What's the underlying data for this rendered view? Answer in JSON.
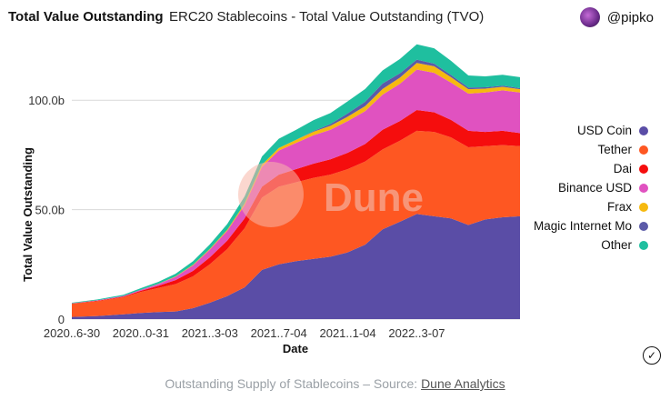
{
  "header": {
    "title": "Total Value Outstanding",
    "subtitle": "ERC20 Stablecoins - Total Value Outstanding (TVO)",
    "user": "@pipko"
  },
  "caption": {
    "prefix": "Outstanding Supply of Stablecoins – Source: ",
    "link_text": "Dune Analytics"
  },
  "watermark": "Dune",
  "colors": {
    "usd_coin": "#5a4da6",
    "tether": "#fe5722",
    "dai": "#f50d0d",
    "binance_usd": "#e052c0",
    "frax": "#f6b90f",
    "magic_internet_money": "#5b5aa8",
    "other": "#1fbf9f"
  },
  "chart_data": {
    "type": "area",
    "stacked": true,
    "xlabel": "Date",
    "ylabel": "Total Value Outstanding",
    "x_tick_labels": [
      "2020..6-30",
      "2020..0-31",
      "2021..3-03",
      "2021..7-04",
      "2021..1-04",
      "2022..3-07"
    ],
    "y_tick_labels": [
      "0",
      "50.0b",
      "100.0b"
    ],
    "ylim": [
      0,
      125
    ],
    "y_unit": "billion USD",
    "x": [
      "2020-06-30",
      "2020-08-15",
      "2020-09-30",
      "2020-10-31",
      "2020-12-01",
      "2021-01-01",
      "2021-02-01",
      "2021-03-03",
      "2021-04-03",
      "2021-05-04",
      "2021-06-04",
      "2021-07-04",
      "2021-08-04",
      "2021-09-04",
      "2021-10-04",
      "2021-11-04",
      "2021-12-05",
      "2022-01-05",
      "2022-02-05",
      "2022-03-07",
      "2022-04-07",
      "2022-05-07",
      "2022-06-07",
      "2022-07-07",
      "2022-08-07",
      "2022-09-07"
    ],
    "series": [
      {
        "name": "USD Coin",
        "color_key": "usd_coin",
        "values": [
          1.0,
          1.4,
          2.2,
          2.8,
          3.2,
          3.5,
          5.0,
          7.5,
          10.5,
          14.5,
          22.5,
          25.0,
          26.5,
          27.5,
          28.5,
          30.5,
          34.0,
          41.0,
          44.5,
          48.0,
          47.0,
          46.0,
          43.0,
          45.5,
          46.5,
          47.0
        ]
      },
      {
        "name": "Tether",
        "color_key": "tether",
        "values": [
          6.0,
          6.8,
          7.8,
          9.6,
          11.0,
          12.5,
          14.5,
          17.5,
          21.5,
          27.0,
          33.0,
          35.5,
          36.0,
          37.0,
          37.5,
          38.0,
          38.0,
          36.5,
          37.0,
          38.0,
          38.5,
          37.0,
          35.5,
          33.5,
          33.0,
          32.0
        ]
      },
      {
        "name": "Dai",
        "color_key": "dai",
        "values": [
          0.1,
          0.2,
          0.3,
          0.5,
          1.0,
          1.8,
          2.5,
          3.2,
          3.8,
          4.5,
          5.0,
          5.5,
          6.0,
          6.5,
          7.0,
          7.5,
          8.0,
          9.0,
          9.0,
          9.5,
          9.0,
          8.0,
          7.5,
          6.5,
          6.5,
          6.0
        ]
      },
      {
        "name": "Binance USD",
        "color_key": "binance_usd",
        "values": [
          0.1,
          0.2,
          0.3,
          0.5,
          0.8,
          1.5,
          2.5,
          3.5,
          4.5,
          6.0,
          9.0,
          11.0,
          12.0,
          13.0,
          13.5,
          14.5,
          15.0,
          16.0,
          17.0,
          18.5,
          18.0,
          17.0,
          17.0,
          18.0,
          18.5,
          18.5
        ]
      },
      {
        "name": "Frax",
        "color_key": "frax",
        "values": [
          0,
          0,
          0,
          0,
          0.1,
          0.2,
          0.3,
          0.4,
          0.5,
          0.8,
          1.0,
          1.2,
          1.4,
          1.6,
          1.8,
          2.0,
          2.3,
          2.6,
          2.8,
          3.0,
          3.0,
          2.5,
          2.0,
          1.8,
          1.6,
          1.5
        ]
      },
      {
        "name": "Magic Internet Mo",
        "color_key": "magic_internet_money",
        "values": [
          0,
          0,
          0,
          0,
          0,
          0,
          0,
          0,
          0,
          0,
          0,
          0,
          0,
          0.3,
          0.8,
          1.5,
          2.0,
          2.5,
          2.0,
          1.5,
          1.2,
          1.0,
          0.8,
          0.6,
          0.5,
          0.5
        ]
      },
      {
        "name": "Other",
        "color_key": "other",
        "values": [
          0.3,
          0.4,
          0.5,
          0.7,
          0.9,
          1.2,
          1.6,
          2.0,
          2.6,
          3.2,
          3.8,
          4.2,
          4.6,
          5.0,
          5.0,
          5.5,
          5.8,
          6.0,
          6.5,
          7.0,
          7.0,
          6.5,
          5.5,
          5.0,
          5.0,
          5.0
        ]
      }
    ],
    "legend_position": "right",
    "grid": "horizontal"
  }
}
